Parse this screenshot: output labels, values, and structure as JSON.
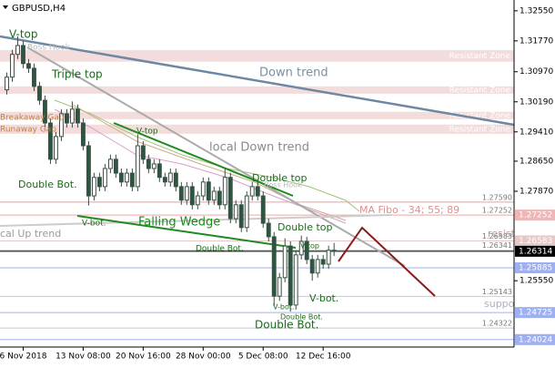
{
  "window_title": "GBPUSD,H4",
  "chart_data": {
    "type": "candlestick",
    "x": [
      -12,
      -8,
      -4,
      0,
      4,
      8,
      12,
      16,
      20,
      24,
      28,
      32,
      36,
      40,
      44,
      48,
      52,
      56,
      60,
      64,
      68,
      72,
      76,
      80,
      84,
      88,
      92,
      96,
      100,
      104,
      108,
      112,
      116,
      120,
      124,
      128,
      132,
      136,
      140,
      144,
      148,
      152,
      156,
      160,
      164,
      168,
      172,
      176,
      180,
      184,
      188,
      192,
      196,
      200,
      204,
      208,
      212,
      216,
      220,
      224,
      228
    ],
    "open": [
      1.305,
      1.3083,
      1.3142,
      1.3165,
      1.3118,
      1.3106,
      1.3059,
      1.3023,
      1.2964,
      1.287,
      1.2929,
      1.2988,
      1.2964,
      1.3,
      1.2964,
      1.2905,
      1.2775,
      1.2823,
      1.2799,
      1.2846,
      1.287,
      1.2834,
      1.2811,
      1.2834,
      1.2799,
      1.2905,
      1.287,
      1.2846,
      1.2858,
      1.2823,
      1.2811,
      1.2834,
      1.2799,
      1.2764,
      1.2799,
      1.2752,
      1.2775,
      1.2811,
      1.2764,
      1.2787,
      1.2752,
      1.2823,
      1.2716,
      1.2752,
      1.2693,
      1.2775,
      1.2799,
      1.2775,
      1.2704,
      1.2669,
      1.2515,
      1.2563,
      1.2645,
      1.2492,
      1.2622,
      1.2657,
      1.261,
      1.2575,
      1.261,
      1.2598,
      1.2634
    ],
    "high": [
      1.3095,
      1.3154,
      1.3189,
      1.3177,
      1.313,
      1.3118,
      1.3071,
      1.3035,
      1.2976,
      1.2941,
      1.3,
      1.3,
      1.302,
      1.3012,
      1.2976,
      1.2917,
      1.2835,
      1.2835,
      1.2858,
      1.2882,
      1.2882,
      1.2846,
      1.2846,
      1.2846,
      1.2935,
      1.2917,
      1.2882,
      1.287,
      1.287,
      1.2835,
      1.2846,
      1.2846,
      1.2811,
      1.2811,
      1.2811,
      1.2787,
      1.2823,
      1.2823,
      1.2799,
      1.2799,
      1.2845,
      1.2835,
      1.2764,
      1.2764,
      1.2787,
      1.2811,
      1.2811,
      1.2787,
      1.2716,
      1.2681,
      1.2575,
      1.2665,
      1.2657,
      1.2634,
      1.2672,
      1.2669,
      1.2622,
      1.2622,
      1.2622,
      1.2646,
      1.2653
    ],
    "low": [
      1.3038,
      1.3071,
      1.313,
      1.3106,
      1.3094,
      1.3047,
      1.3011,
      1.2952,
      1.2858,
      1.2858,
      1.2917,
      1.2952,
      1.2952,
      1.2952,
      1.2893,
      1.275,
      1.2763,
      1.2787,
      1.2787,
      1.2834,
      1.2822,
      1.2799,
      1.2799,
      1.2787,
      1.2787,
      1.2858,
      1.2834,
      1.2834,
      1.2811,
      1.2799,
      1.2799,
      1.2787,
      1.2752,
      1.2752,
      1.274,
      1.274,
      1.2763,
      1.2752,
      1.2752,
      1.274,
      1.274,
      1.2704,
      1.2704,
      1.2681,
      1.2681,
      1.2763,
      1.2763,
      1.2692,
      1.2657,
      1.249,
      1.2503,
      1.2551,
      1.2475,
      1.248,
      1.261,
      1.2598,
      1.2555,
      1.2563,
      1.2586,
      1.2586,
      1.2619
    ],
    "close": [
      1.3083,
      1.3142,
      1.3165,
      1.3118,
      1.3106,
      1.3059,
      1.3023,
      1.2964,
      1.287,
      1.2929,
      1.2988,
      1.2964,
      1.3,
      1.2964,
      1.2905,
      1.2775,
      1.2823,
      1.2799,
      1.2846,
      1.287,
      1.2834,
      1.2811,
      1.2834,
      1.2799,
      1.2905,
      1.287,
      1.2846,
      1.2858,
      1.2823,
      1.2811,
      1.2834,
      1.2799,
      1.2764,
      1.2799,
      1.2752,
      1.2775,
      1.2811,
      1.2764,
      1.2787,
      1.2752,
      1.2823,
      1.2716,
      1.2752,
      1.2693,
      1.2775,
      1.2799,
      1.2775,
      1.2704,
      1.2669,
      1.2515,
      1.2563,
      1.2645,
      1.2492,
      1.2622,
      1.2657,
      1.261,
      1.2575,
      1.261,
      1.2598,
      1.2634,
      1.2631
    ],
    "up_color": "#2f5542",
    "down_color": "#2f5542",
    "xlim": [
      -17,
      360
    ],
    "xticks": [
      {
        "value": 0,
        "label": "6 Nov 2018"
      },
      {
        "value": 44,
        "label": "13 Nov 08:00"
      },
      {
        "value": 88,
        "label": "20 Nov 16:00"
      },
      {
        "value": 132,
        "label": "28 Nov 00:00"
      },
      {
        "value": 176,
        "label": "5 Dec 08:00"
      },
      {
        "value": 220,
        "label": "12 Dec 16:00"
      }
    ],
    "ylim": [
      1.2383,
      1.3283
    ],
    "yticks": [
      {
        "value": 1.3255,
        "label": "1.32550"
      },
      {
        "value": 1.3177,
        "label": "1.31770"
      },
      {
        "value": 1.3097,
        "label": "1.30970"
      },
      {
        "value": 1.3019,
        "label": "1.30190"
      },
      {
        "value": 1.2941,
        "label": "1.29410"
      },
      {
        "value": 1.2865,
        "label": "1.28650"
      },
      {
        "value": 1.2787,
        "label": "1.27870"
      },
      {
        "value": 1.2555,
        "label": "1.25550"
      }
    ],
    "zones": [
      {
        "low": 1.3123,
        "high": 1.3153,
        "label": "Resistant Zone"
      },
      {
        "low": 1.304,
        "high": 1.3059,
        "label": "Resistant Zone"
      },
      {
        "low": 1.2974,
        "high": 1.2993,
        "label": "Resistant Zone"
      },
      {
        "low": 1.2936,
        "high": 1.296,
        "label": "Resistant Zone"
      }
    ],
    "levels": [
      {
        "value": 1.2759,
        "label": "1.27590",
        "color": "#e3a3a3"
      },
      {
        "value": 1.27252,
        "label": "1.27252",
        "color": "#d9b0b0"
      },
      {
        "value": 1.26583,
        "label": "1.26583",
        "color": "#c9b9b9"
      },
      {
        "value": 1.26341,
        "label": "1.26341",
        "color": "#c0c0c0"
      },
      {
        "value": 1.25143,
        "label": "1.25143",
        "color": "#c8c8d8"
      },
      {
        "value": 1.24322,
        "label": "1.24322",
        "color": "#c8c8d8"
      }
    ],
    "axis_markers": [
      {
        "value": 1.27252,
        "label": "1.27252",
        "color": "#f2b5b5"
      },
      {
        "value": 1.26583,
        "label": "1.26583",
        "color": "#e6c8c8"
      },
      {
        "value": 1.26314,
        "label": "1.26314",
        "color": "#000000"
      },
      {
        "value": 1.25885,
        "label": "1.25885",
        "color": "#9fb0f2"
      },
      {
        "value": 1.24725,
        "label": "1.24725",
        "color": "#9fb0f2"
      },
      {
        "value": 1.24024,
        "label": "1.24024",
        "color": "#9fb0f2"
      }
    ],
    "annotations": [
      "V-top",
      "Triple top",
      "Double Bot.",
      "V-bot.",
      "V-top",
      "Falling Wedge",
      "local Down trend",
      "Double top",
      "Double top",
      "Double Bot.",
      "V-top",
      "V-bot.",
      "Double Bot.",
      "V-bot.",
      "Double Bot.",
      "Down trend",
      "MA Fibo - 34; 55; 89",
      "resistant",
      "support",
      "cal Up trend",
      "Boss Hook",
      "Breakaway Gap",
      "Runaway Gap",
      "Boss Hook"
    ]
  }
}
